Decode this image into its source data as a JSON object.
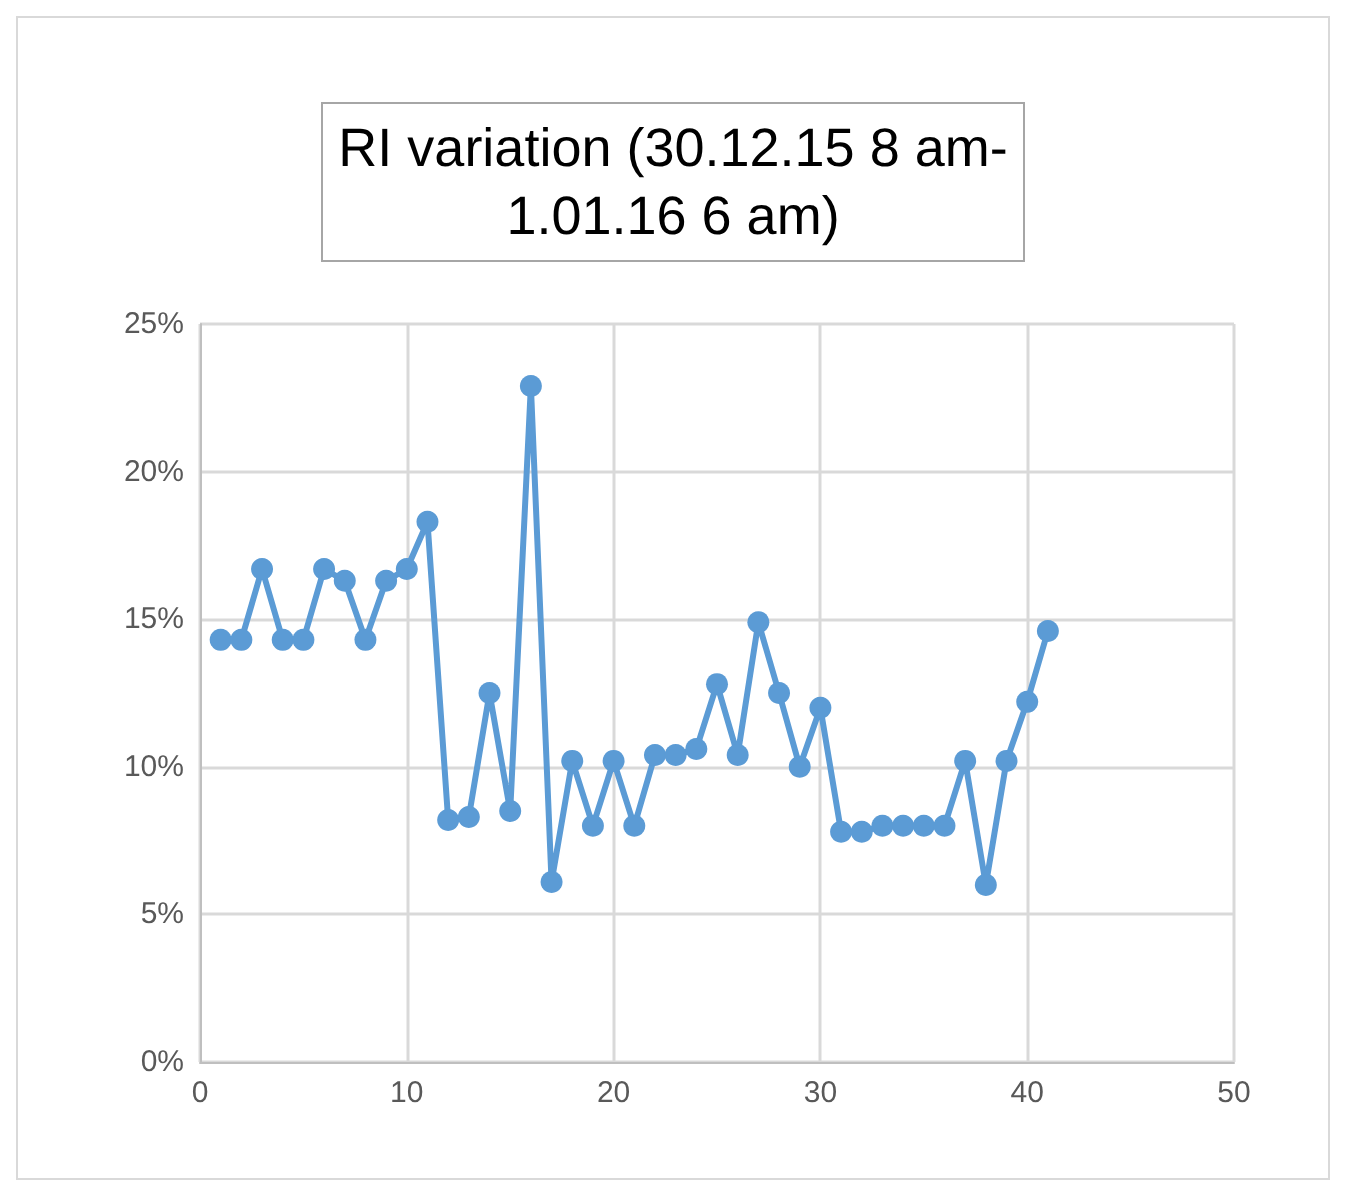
{
  "chart_data": {
    "type": "line",
    "title": "RI variation (30.12.15 8 am-\n1.01.16 6 am)",
    "x": [
      1,
      2,
      3,
      4,
      5,
      6,
      7,
      8,
      9,
      10,
      11,
      12,
      13,
      14,
      15,
      16,
      17,
      18,
      19,
      20,
      21,
      22,
      23,
      24,
      25,
      26,
      27,
      28,
      29,
      30,
      31,
      32,
      33,
      34,
      35,
      36,
      37,
      38,
      39,
      40,
      41
    ],
    "series": [
      {
        "color": "#5b9bd5",
        "values": [
          14.3,
          14.3,
          16.7,
          14.3,
          14.3,
          16.7,
          16.3,
          14.3,
          16.3,
          16.7,
          18.3,
          8.2,
          8.3,
          12.5,
          8.5,
          22.9,
          6.1,
          10.2,
          8.0,
          10.2,
          8.0,
          10.4,
          10.4,
          10.6,
          12.8,
          10.4,
          14.9,
          12.5,
          10.0,
          12.0,
          7.8,
          7.8,
          8.0,
          8.0,
          8.0,
          8.0,
          10.2,
          6.0,
          10.2,
          12.2,
          14.6
        ]
      }
    ],
    "xlim": [
      0,
      50
    ],
    "xticks": [
      0,
      10,
      20,
      30,
      40,
      50
    ],
    "ylim": [
      0,
      25
    ],
    "yticks": [
      {
        "value": 0,
        "label": "0%"
      },
      {
        "value": 5,
        "label": "5%"
      },
      {
        "value": 10,
        "label": "10%"
      },
      {
        "value": 15,
        "label": "15%"
      },
      {
        "value": 20,
        "label": "20%"
      },
      {
        "value": 25,
        "label": "25%"
      }
    ],
    "grid": true,
    "marker": "circle",
    "line_style": "solid"
  }
}
